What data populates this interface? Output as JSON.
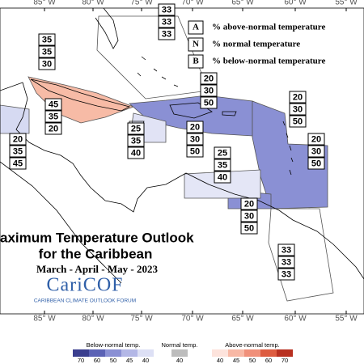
{
  "longitude_labels_top": [
    "85° W",
    "80° W",
    "75° W",
    "70° W",
    "65° W",
    "60° W",
    "55° W"
  ],
  "longitude_labels_bottom": [
    "85° W",
    "80° W",
    "75° W",
    "70° W",
    "65° W",
    "60° W",
    "55° W"
  ],
  "legend_key": [
    {
      "letter": "A",
      "text": "% above-normal temperature"
    },
    {
      "letter": "N",
      "text": "% normal temperature"
    },
    {
      "letter": "B",
      "text": "% below-normal temperature"
    }
  ],
  "outlook_boxes": [
    {
      "above": 35,
      "normal": 35,
      "below": 30
    },
    {
      "above": 33,
      "normal": 33,
      "below": 33
    },
    {
      "above": 45,
      "normal": 35,
      "below": 20
    },
    {
      "above": 20,
      "normal": 35,
      "below": 45
    },
    {
      "above": 25,
      "normal": 35,
      "below": 40
    },
    {
      "above": 20,
      "normal": 30,
      "below": 50
    },
    {
      "above": 20,
      "normal": 30,
      "below": 50
    },
    {
      "above": 20,
      "normal": 30,
      "below": 50
    },
    {
      "above": 20,
      "normal": 30,
      "below": 50
    },
    {
      "above": 25,
      "normal": 35,
      "below": 40
    },
    {
      "above": 20,
      "normal": 30,
      "below": 50
    },
    {
      "above": 33,
      "normal": 33,
      "below": 33
    }
  ],
  "title": {
    "line1": "aximum Temperature Outlook",
    "line2": "for the Caribbean",
    "period": "March - April - May - 2023"
  },
  "logo": {
    "name": "CariCOF",
    "tagline": "CARIBBEAN CLIMATE OUTLOOK FORUM"
  },
  "colorbar": {
    "below": {
      "label": "Below-normal temp.",
      "ticks": [
        70,
        60,
        50,
        45,
        40
      ]
    },
    "normal": {
      "label": "Normal temp.",
      "ticks": [
        40
      ]
    },
    "above": {
      "label": "Above-normal temp.",
      "ticks": [
        40,
        45,
        50,
        60,
        70
      ]
    }
  }
}
